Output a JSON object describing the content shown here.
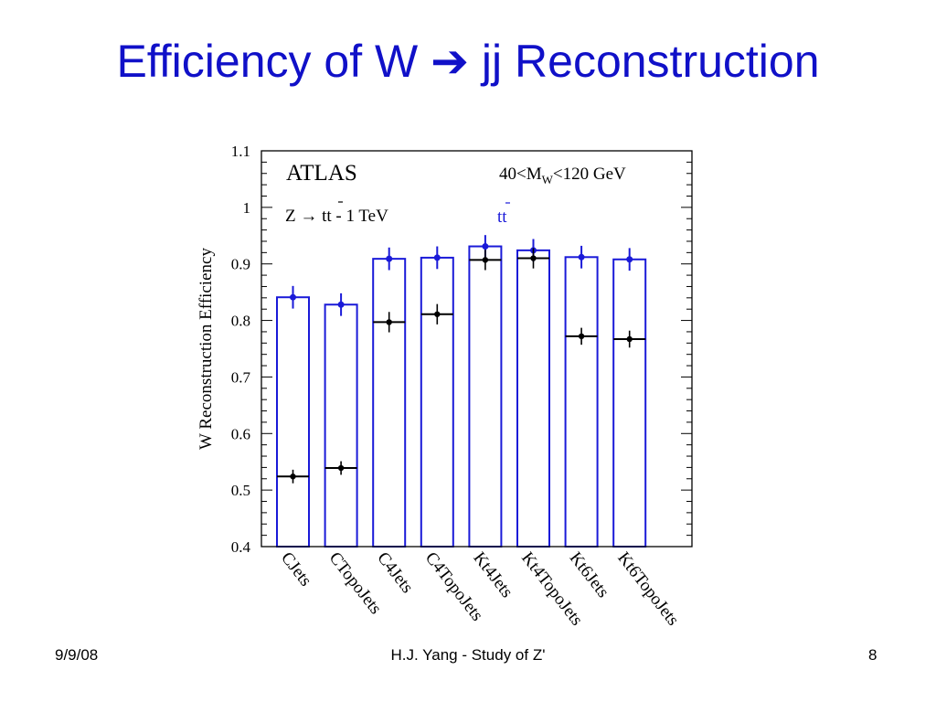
{
  "slide": {
    "title_prefix": "Efficiency of W",
    "title_arrow": "➔",
    "title_suffix": "jj Reconstruction",
    "footer_date": "9/9/08",
    "footer_center": "H.J. Yang - Study of Z'",
    "footer_page": "8"
  },
  "chart_data": {
    "type": "bar",
    "ylabel": "W Reconstruction Efficiency",
    "ylim": [
      0.4,
      1.1
    ],
    "yticks": [
      "0.4",
      "0.5",
      "0.6",
      "0.7",
      "0.8",
      "0.9",
      "1",
      "1.1"
    ],
    "categories": [
      "CJets",
      "CTopoJets",
      "C4Jets",
      "C4TopoJets",
      "Kt4Jets",
      "Kt4TopoJets",
      "Kt6Jets",
      "Kt6TopoJets"
    ],
    "legend_ttbar": "tt",
    "annotations": {
      "experiment": "ATLAS",
      "mass_cut": "40<MW<120 GeV",
      "sample": "Z → tt - 1 TeV"
    },
    "series": [
      {
        "name": "tt",
        "color": "#1a1ad8",
        "style": "bar",
        "values": [
          0.841,
          0.828,
          0.909,
          0.911,
          0.931,
          0.924,
          0.912,
          0.908
        ],
        "errors": [
          0.02,
          0.02,
          0.02,
          0.02,
          0.02,
          0.02,
          0.02,
          0.02
        ]
      },
      {
        "name": "Z → tt - 1 TeV",
        "color": "#000000",
        "style": "marker",
        "values": [
          0.524,
          0.539,
          0.797,
          0.811,
          0.907,
          0.91,
          0.772,
          0.767
        ],
        "errors": [
          0.012,
          0.012,
          0.018,
          0.018,
          0.018,
          0.018,
          0.015,
          0.015
        ]
      }
    ]
  }
}
